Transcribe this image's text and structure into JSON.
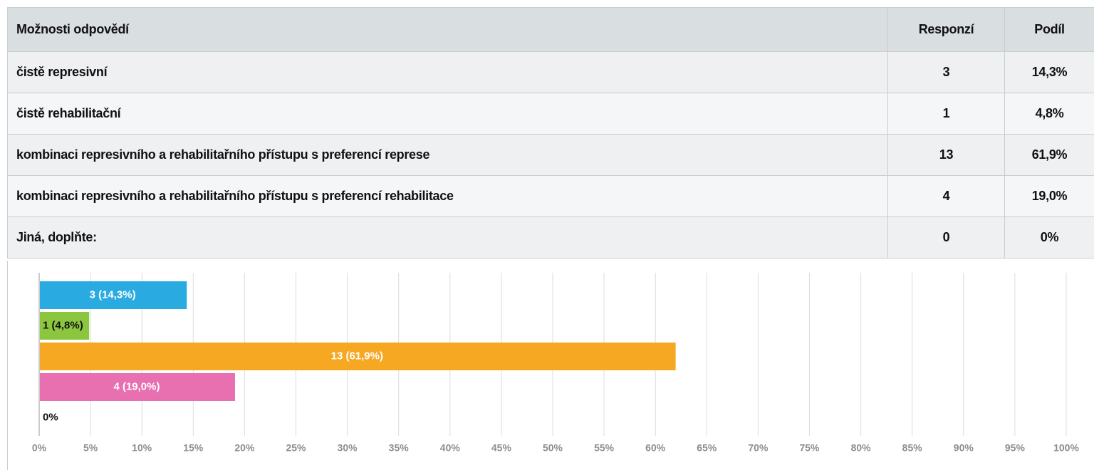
{
  "table": {
    "columns": [
      "Možnosti odpovědí",
      "Responzí",
      "Podíl"
    ],
    "rows": [
      [
        "čistě represivní",
        "3",
        "14,3%"
      ],
      [
        "čistě  rehabilitační",
        "1",
        "4,8%"
      ],
      [
        "kombinaci represivního a rehabilitařního přístupu s preferencí represe",
        "13",
        "61,9%"
      ],
      [
        "kombinaci represivního a rehabilitařního přístupu s preferencí rehabilitace",
        "4",
        "19,0%"
      ],
      [
        "Jiná, doplňte:",
        "0",
        "0%"
      ]
    ]
  },
  "chart_data": {
    "type": "hbar",
    "values": [
      14.3,
      4.8,
      61.9,
      19.0,
      0
    ],
    "value_labels": [
      "3 (14,3%)",
      "1 (4,8%)",
      "13 (61,9%)",
      "4 (19,0%)",
      "0%"
    ],
    "colors": [
      "#29abe2",
      "#8cc63e",
      "#f7a823",
      "#e86fb0",
      "#f26522"
    ],
    "xlim": [
      0,
      100
    ],
    "xticks": [
      {
        "value": 0,
        "label": "0%"
      },
      {
        "value": 5,
        "label": "5%"
      },
      {
        "value": 10,
        "label": "10%"
      },
      {
        "value": 15,
        "label": "15%"
      },
      {
        "value": 20,
        "label": "20%"
      },
      {
        "value": 25,
        "label": "25%"
      },
      {
        "value": 30,
        "label": "30%"
      },
      {
        "value": 35,
        "label": "35%"
      },
      {
        "value": 40,
        "label": "40%"
      },
      {
        "value": 45,
        "label": "45%"
      },
      {
        "value": 50,
        "label": "50%"
      },
      {
        "value": 55,
        "label": "55%"
      },
      {
        "value": 60,
        "label": "60%"
      },
      {
        "value": 65,
        "label": "65%"
      },
      {
        "value": 70,
        "label": "70%"
      },
      {
        "value": 75,
        "label": "75%"
      },
      {
        "value": 80,
        "label": "80%"
      },
      {
        "value": 85,
        "label": "85%"
      },
      {
        "value": 90,
        "label": "90%"
      },
      {
        "value": 95,
        "label": "95%"
      },
      {
        "value": 100,
        "label": "100%"
      }
    ],
    "grid": true
  }
}
